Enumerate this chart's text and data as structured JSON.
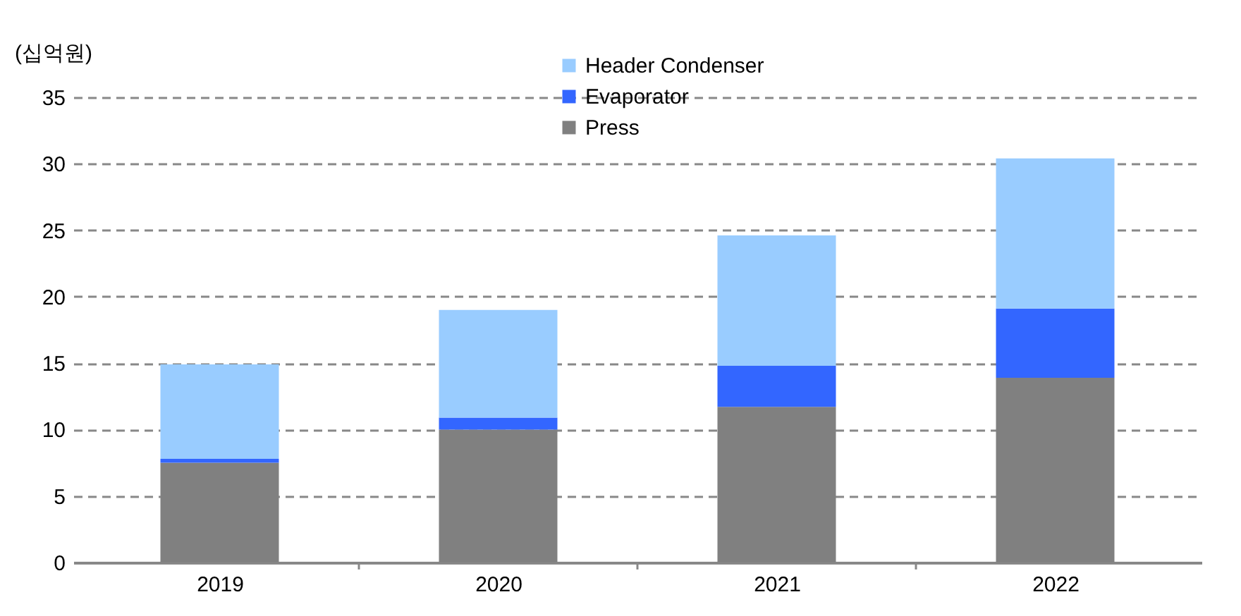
{
  "chart_data": {
    "type": "bar",
    "stacked": true,
    "ylabel": "(십억원)",
    "categories": [
      "2019",
      "2020",
      "2021",
      "2022"
    ],
    "series": [
      {
        "name": "Press",
        "color": "#808080",
        "values": [
          7.5,
          10.0,
          11.7,
          13.9
        ]
      },
      {
        "name": "Evaporator",
        "color": "#3366ff",
        "values": [
          0.3,
          0.9,
          3.1,
          5.2
        ]
      },
      {
        "name": "Header Condenser",
        "color": "#99ccff",
        "values": [
          7.1,
          8.1,
          9.8,
          11.3
        ]
      }
    ],
    "ylim": [
      0,
      35
    ],
    "yticks": [
      0,
      5,
      10,
      15,
      20,
      25,
      30,
      35
    ],
    "grid": "y",
    "legend": "top"
  }
}
